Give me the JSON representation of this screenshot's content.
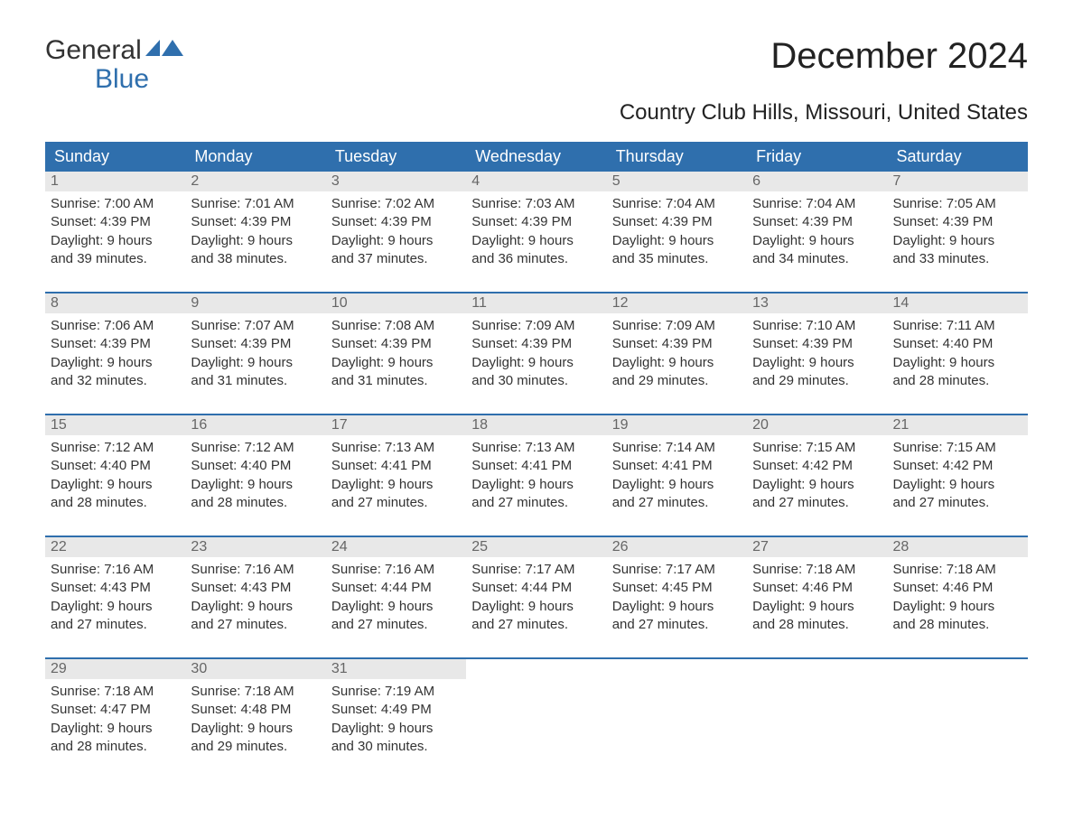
{
  "logo": {
    "word1": "General",
    "word2": "Blue",
    "word2_color": "#2f6fad",
    "flag_color": "#2f6fad"
  },
  "title": "December 2024",
  "subtitle": "Country Club Hills, Missouri, United States",
  "header_bg": "#2f6fad",
  "header_fg": "#ffffff",
  "daynum_bg": "#e8e8e8",
  "daynum_fg": "#666666",
  "week_border_color": "#2f6fad",
  "body_text_color": "#333333",
  "days_of_week": [
    "Sunday",
    "Monday",
    "Tuesday",
    "Wednesday",
    "Thursday",
    "Friday",
    "Saturday"
  ],
  "weeks": [
    [
      {
        "num": "1",
        "sunrise": "Sunrise: 7:00 AM",
        "sunset": "Sunset: 4:39 PM",
        "daylight1": "Daylight: 9 hours",
        "daylight2": "and 39 minutes."
      },
      {
        "num": "2",
        "sunrise": "Sunrise: 7:01 AM",
        "sunset": "Sunset: 4:39 PM",
        "daylight1": "Daylight: 9 hours",
        "daylight2": "and 38 minutes."
      },
      {
        "num": "3",
        "sunrise": "Sunrise: 7:02 AM",
        "sunset": "Sunset: 4:39 PM",
        "daylight1": "Daylight: 9 hours",
        "daylight2": "and 37 minutes."
      },
      {
        "num": "4",
        "sunrise": "Sunrise: 7:03 AM",
        "sunset": "Sunset: 4:39 PM",
        "daylight1": "Daylight: 9 hours",
        "daylight2": "and 36 minutes."
      },
      {
        "num": "5",
        "sunrise": "Sunrise: 7:04 AM",
        "sunset": "Sunset: 4:39 PM",
        "daylight1": "Daylight: 9 hours",
        "daylight2": "and 35 minutes."
      },
      {
        "num": "6",
        "sunrise": "Sunrise: 7:04 AM",
        "sunset": "Sunset: 4:39 PM",
        "daylight1": "Daylight: 9 hours",
        "daylight2": "and 34 minutes."
      },
      {
        "num": "7",
        "sunrise": "Sunrise: 7:05 AM",
        "sunset": "Sunset: 4:39 PM",
        "daylight1": "Daylight: 9 hours",
        "daylight2": "and 33 minutes."
      }
    ],
    [
      {
        "num": "8",
        "sunrise": "Sunrise: 7:06 AM",
        "sunset": "Sunset: 4:39 PM",
        "daylight1": "Daylight: 9 hours",
        "daylight2": "and 32 minutes."
      },
      {
        "num": "9",
        "sunrise": "Sunrise: 7:07 AM",
        "sunset": "Sunset: 4:39 PM",
        "daylight1": "Daylight: 9 hours",
        "daylight2": "and 31 minutes."
      },
      {
        "num": "10",
        "sunrise": "Sunrise: 7:08 AM",
        "sunset": "Sunset: 4:39 PM",
        "daylight1": "Daylight: 9 hours",
        "daylight2": "and 31 minutes."
      },
      {
        "num": "11",
        "sunrise": "Sunrise: 7:09 AM",
        "sunset": "Sunset: 4:39 PM",
        "daylight1": "Daylight: 9 hours",
        "daylight2": "and 30 minutes."
      },
      {
        "num": "12",
        "sunrise": "Sunrise: 7:09 AM",
        "sunset": "Sunset: 4:39 PM",
        "daylight1": "Daylight: 9 hours",
        "daylight2": "and 29 minutes."
      },
      {
        "num": "13",
        "sunrise": "Sunrise: 7:10 AM",
        "sunset": "Sunset: 4:39 PM",
        "daylight1": "Daylight: 9 hours",
        "daylight2": "and 29 minutes."
      },
      {
        "num": "14",
        "sunrise": "Sunrise: 7:11 AM",
        "sunset": "Sunset: 4:40 PM",
        "daylight1": "Daylight: 9 hours",
        "daylight2": "and 28 minutes."
      }
    ],
    [
      {
        "num": "15",
        "sunrise": "Sunrise: 7:12 AM",
        "sunset": "Sunset: 4:40 PM",
        "daylight1": "Daylight: 9 hours",
        "daylight2": "and 28 minutes."
      },
      {
        "num": "16",
        "sunrise": "Sunrise: 7:12 AM",
        "sunset": "Sunset: 4:40 PM",
        "daylight1": "Daylight: 9 hours",
        "daylight2": "and 28 minutes."
      },
      {
        "num": "17",
        "sunrise": "Sunrise: 7:13 AM",
        "sunset": "Sunset: 4:41 PM",
        "daylight1": "Daylight: 9 hours",
        "daylight2": "and 27 minutes."
      },
      {
        "num": "18",
        "sunrise": "Sunrise: 7:13 AM",
        "sunset": "Sunset: 4:41 PM",
        "daylight1": "Daylight: 9 hours",
        "daylight2": "and 27 minutes."
      },
      {
        "num": "19",
        "sunrise": "Sunrise: 7:14 AM",
        "sunset": "Sunset: 4:41 PM",
        "daylight1": "Daylight: 9 hours",
        "daylight2": "and 27 minutes."
      },
      {
        "num": "20",
        "sunrise": "Sunrise: 7:15 AM",
        "sunset": "Sunset: 4:42 PM",
        "daylight1": "Daylight: 9 hours",
        "daylight2": "and 27 minutes."
      },
      {
        "num": "21",
        "sunrise": "Sunrise: 7:15 AM",
        "sunset": "Sunset: 4:42 PM",
        "daylight1": "Daylight: 9 hours",
        "daylight2": "and 27 minutes."
      }
    ],
    [
      {
        "num": "22",
        "sunrise": "Sunrise: 7:16 AM",
        "sunset": "Sunset: 4:43 PM",
        "daylight1": "Daylight: 9 hours",
        "daylight2": "and 27 minutes."
      },
      {
        "num": "23",
        "sunrise": "Sunrise: 7:16 AM",
        "sunset": "Sunset: 4:43 PM",
        "daylight1": "Daylight: 9 hours",
        "daylight2": "and 27 minutes."
      },
      {
        "num": "24",
        "sunrise": "Sunrise: 7:16 AM",
        "sunset": "Sunset: 4:44 PM",
        "daylight1": "Daylight: 9 hours",
        "daylight2": "and 27 minutes."
      },
      {
        "num": "25",
        "sunrise": "Sunrise: 7:17 AM",
        "sunset": "Sunset: 4:44 PM",
        "daylight1": "Daylight: 9 hours",
        "daylight2": "and 27 minutes."
      },
      {
        "num": "26",
        "sunrise": "Sunrise: 7:17 AM",
        "sunset": "Sunset: 4:45 PM",
        "daylight1": "Daylight: 9 hours",
        "daylight2": "and 27 minutes."
      },
      {
        "num": "27",
        "sunrise": "Sunrise: 7:18 AM",
        "sunset": "Sunset: 4:46 PM",
        "daylight1": "Daylight: 9 hours",
        "daylight2": "and 28 minutes."
      },
      {
        "num": "28",
        "sunrise": "Sunrise: 7:18 AM",
        "sunset": "Sunset: 4:46 PM",
        "daylight1": "Daylight: 9 hours",
        "daylight2": "and 28 minutes."
      }
    ],
    [
      {
        "num": "29",
        "sunrise": "Sunrise: 7:18 AM",
        "sunset": "Sunset: 4:47 PM",
        "daylight1": "Daylight: 9 hours",
        "daylight2": "and 28 minutes."
      },
      {
        "num": "30",
        "sunrise": "Sunrise: 7:18 AM",
        "sunset": "Sunset: 4:48 PM",
        "daylight1": "Daylight: 9 hours",
        "daylight2": "and 29 minutes."
      },
      {
        "num": "31",
        "sunrise": "Sunrise: 7:19 AM",
        "sunset": "Sunset: 4:49 PM",
        "daylight1": "Daylight: 9 hours",
        "daylight2": "and 30 minutes."
      },
      {
        "empty": true
      },
      {
        "empty": true
      },
      {
        "empty": true
      },
      {
        "empty": true
      }
    ]
  ]
}
